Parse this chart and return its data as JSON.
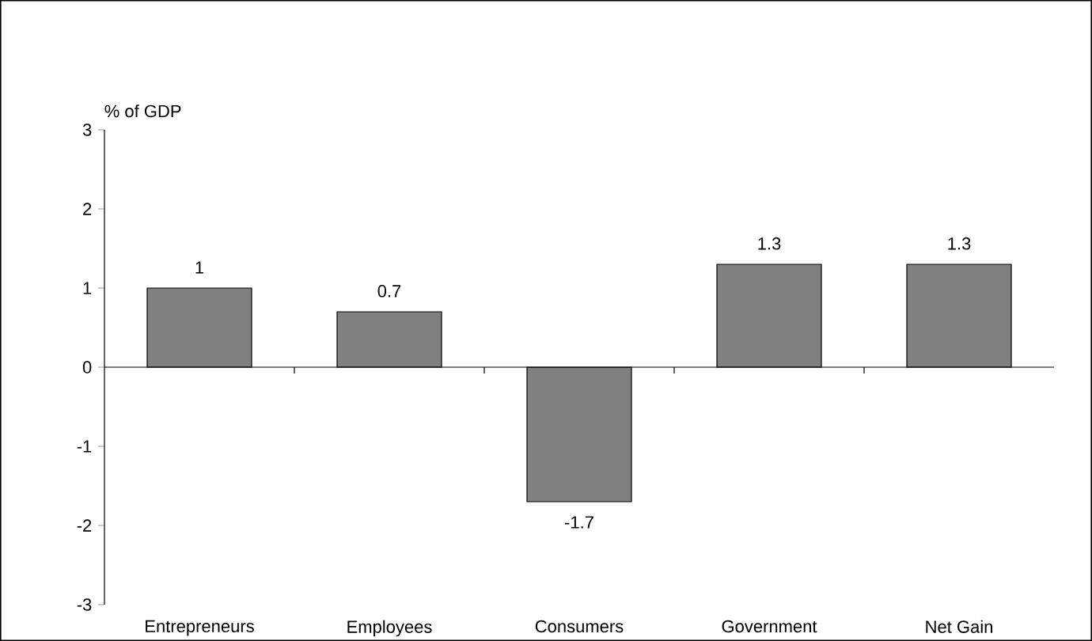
{
  "chart_data": {
    "type": "bar",
    "ylabel": "% of GDP",
    "categories": [
      "Entrepreneurs",
      "Employees",
      "Consumers",
      "Government",
      "Net Gain"
    ],
    "values": [
      1,
      0.7,
      -1.7,
      1.3,
      1.3
    ],
    "color": "#808080",
    "ylim": [
      -3,
      3
    ],
    "yticks": [
      -3,
      -2,
      -1,
      0,
      1,
      2,
      3
    ],
    "data_labels": true
  }
}
